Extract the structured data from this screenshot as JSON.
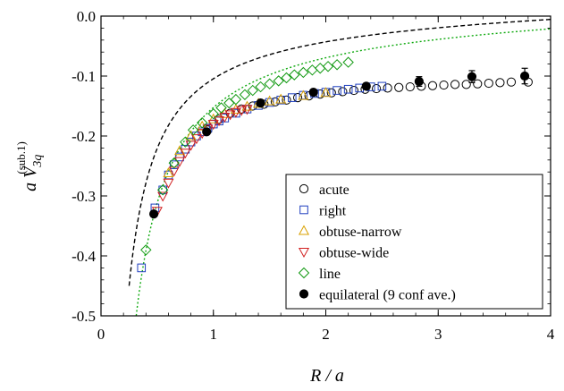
{
  "chart_data": {
    "type": "scatter",
    "title": "",
    "xlabel": "R / a",
    "ylabel_main": "a V",
    "ylabel_sub": "3q",
    "ylabel_sup": "(sub.1)",
    "xlim": [
      0,
      4
    ],
    "ylim": [
      -0.5,
      0.0
    ],
    "x_ticks": [
      0,
      1,
      2,
      3,
      4
    ],
    "x_tick_labels": [
      "0",
      "1",
      "2",
      "3",
      "4"
    ],
    "y_ticks": [
      0.0,
      -0.1,
      -0.2,
      -0.3,
      -0.4,
      -0.5
    ],
    "y_tick_labels": [
      "0.0",
      "-0.1",
      "-0.2",
      "-0.3",
      "-0.4",
      "-0.5"
    ],
    "grid": false,
    "legend_position": "bottom-right",
    "series": [
      {
        "name": "acute",
        "marker": "circle-open",
        "color": "#000000",
        "x": [
          0.95,
          1.05,
          1.15,
          1.25,
          1.35,
          1.45,
          1.55,
          1.65,
          1.75,
          1.85,
          1.95,
          2.05,
          2.15,
          2.25,
          2.35,
          2.45,
          2.55,
          2.65,
          2.75,
          2.85,
          2.95,
          3.05,
          3.15,
          3.25,
          3.35,
          3.45,
          3.55,
          3.65,
          3.8
        ],
        "y": [
          -0.19,
          -0.172,
          -0.162,
          -0.155,
          -0.15,
          -0.147,
          -0.143,
          -0.14,
          -0.136,
          -0.133,
          -0.13,
          -0.128,
          -0.126,
          -0.124,
          -0.122,
          -0.121,
          -0.12,
          -0.119,
          -0.118,
          -0.117,
          -0.116,
          -0.115,
          -0.114,
          -0.114,
          -0.113,
          -0.112,
          -0.111,
          -0.11,
          -0.11
        ]
      },
      {
        "name": "right",
        "marker": "square-open",
        "color": "#1f3fbf",
        "x": [
          0.36,
          0.48,
          0.55,
          0.6,
          0.65,
          0.7,
          0.75,
          0.8,
          0.85,
          0.9,
          0.95,
          1.0,
          1.05,
          1.1,
          1.2,
          1.3,
          1.4,
          1.5,
          1.6,
          1.7,
          1.8,
          1.9,
          2.0,
          2.1,
          2.2,
          2.3,
          2.4,
          2.5
        ],
        "y": [
          -0.42,
          -0.32,
          -0.29,
          -0.265,
          -0.248,
          -0.235,
          -0.222,
          -0.21,
          -0.2,
          -0.193,
          -0.187,
          -0.18,
          -0.175,
          -0.17,
          -0.162,
          -0.155,
          -0.149,
          -0.144,
          -0.14,
          -0.136,
          -0.132,
          -0.129,
          -0.127,
          -0.124,
          -0.122,
          -0.12,
          -0.118,
          -0.117
        ]
      },
      {
        "name": "obtuse-narrow",
        "marker": "triangle-up-open",
        "color": "#d9a000",
        "x": [
          0.6,
          0.7,
          0.8,
          0.9,
          1.0,
          1.1,
          1.2,
          1.3,
          1.4,
          1.5,
          1.6,
          1.8,
          2.0
        ],
        "y": [
          -0.262,
          -0.225,
          -0.2,
          -0.184,
          -0.172,
          -0.163,
          -0.156,
          -0.151,
          -0.146,
          -0.142,
          -0.139,
          -0.133,
          -0.128
        ]
      },
      {
        "name": "obtuse-wide",
        "marker": "triangle-down-open",
        "color": "#d12020",
        "x": [
          0.5,
          0.55,
          0.6,
          0.65,
          0.7,
          0.75,
          0.8,
          0.85,
          0.9,
          0.95,
          1.0,
          1.05,
          1.1,
          1.15,
          1.2,
          1.25,
          1.3
        ],
        "y": [
          -0.325,
          -0.3,
          -0.278,
          -0.258,
          -0.242,
          -0.228,
          -0.215,
          -0.204,
          -0.195,
          -0.188,
          -0.18,
          -0.174,
          -0.168,
          -0.164,
          -0.16,
          -0.157,
          -0.155
        ]
      },
      {
        "name": "line",
        "marker": "diamond-open",
        "color": "#119911",
        "x": [
          0.4,
          0.55,
          0.65,
          0.75,
          0.82,
          0.9,
          1.0,
          1.07,
          1.14,
          1.2,
          1.28,
          1.35,
          1.42,
          1.5,
          1.58,
          1.65,
          1.72,
          1.8,
          1.88,
          1.95,
          2.02,
          2.1,
          2.2
        ],
        "y": [
          -0.39,
          -0.29,
          -0.245,
          -0.21,
          -0.19,
          -0.178,
          -0.163,
          -0.153,
          -0.145,
          -0.139,
          -0.131,
          -0.124,
          -0.118,
          -0.113,
          -0.108,
          -0.103,
          -0.098,
          -0.094,
          -0.09,
          -0.087,
          -0.084,
          -0.081,
          -0.077
        ]
      },
      {
        "name": "equilateral (9 conf ave.)",
        "marker": "circle-filled",
        "color": "#000000",
        "x": [
          0.47,
          0.94,
          1.42,
          1.89,
          2.36,
          2.83,
          3.3,
          3.77
        ],
        "y": [
          -0.33,
          -0.193,
          -0.145,
          -0.127,
          -0.117,
          -0.109,
          -0.101,
          -0.1
        ],
        "yerr": [
          0.003,
          0.003,
          0.003,
          0.004,
          0.005,
          0.008,
          0.01,
          0.013
        ]
      }
    ],
    "fits": [
      {
        "style": "dashed",
        "color": "#000000",
        "form": "c - A/R + s*R",
        "params": {
          "c": 0.005,
          "A": 0.114,
          "s": 0.0045
        }
      },
      {
        "style": "dotted",
        "color": "#11aa11",
        "form": "c - A/R + s*R",
        "params": {
          "c": 0.0,
          "A": 0.157,
          "s": 0.0045
        }
      }
    ]
  }
}
